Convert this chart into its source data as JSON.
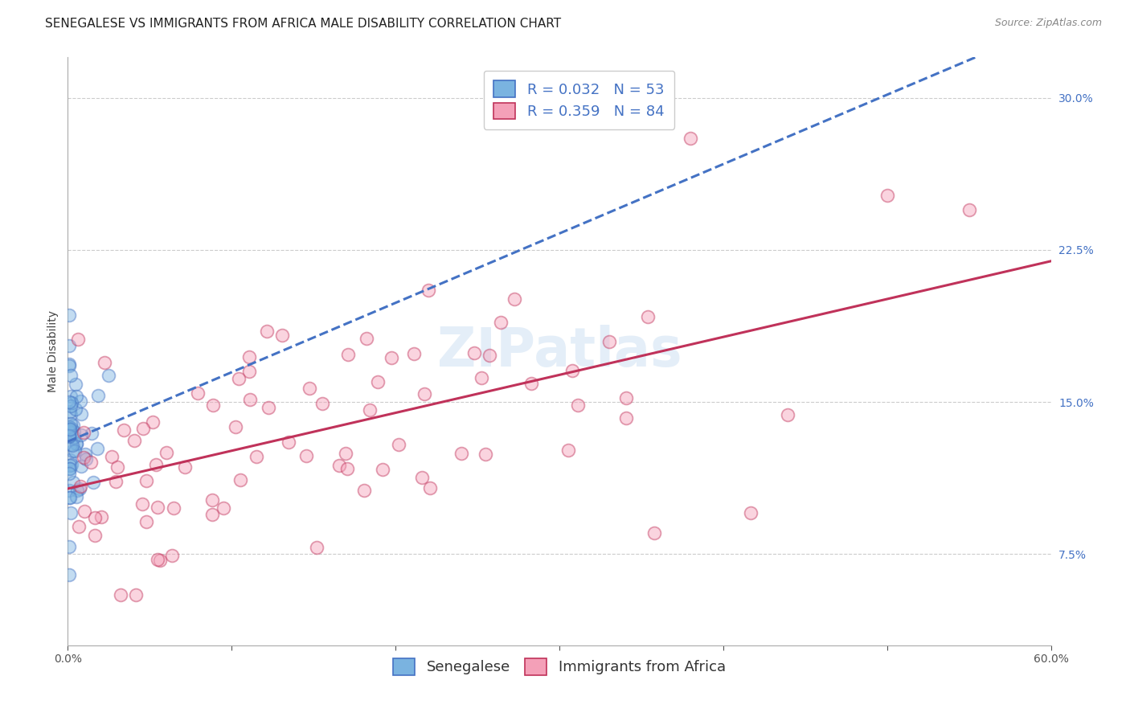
{
  "title": "SENEGALESE VS IMMIGRANTS FROM AFRICA MALE DISABILITY CORRELATION CHART",
  "source": "Source: ZipAtlas.com",
  "ylabel": "Male Disability",
  "watermark": "ZIPatlas",
  "senegalese": {
    "R": 0.032,
    "N": 53,
    "color_scatter": "#7ab3e0",
    "color_line": "#4472c4",
    "line_style": "--"
  },
  "immigrants": {
    "R": 0.359,
    "N": 84,
    "color_scatter": "#f4a0b8",
    "color_line": "#c0325a",
    "line_style": "-"
  },
  "xlim": [
    0.0,
    0.6
  ],
  "ylim": [
    0.03,
    0.32
  ],
  "xticks": [
    0.0,
    0.1,
    0.2,
    0.3,
    0.4,
    0.5,
    0.6
  ],
  "xtick_labels": [
    "0.0%",
    "",
    "",
    "",
    "",
    "",
    "60.0%"
  ],
  "yticks": [
    0.075,
    0.15,
    0.225,
    0.3
  ],
  "ytick_labels": [
    "7.5%",
    "15.0%",
    "22.5%",
    "30.0%"
  ],
  "legend_text_color": "#4472c4",
  "background_color": "#ffffff",
  "grid_color": "#cccccc",
  "title_fontsize": 11,
  "axis_label_fontsize": 10,
  "tick_fontsize": 10,
  "legend_fontsize": 13,
  "source_fontsize": 9,
  "watermark_fontsize": 48,
  "scatter_size": 130,
  "scatter_alpha": 0.45,
  "scatter_linewidth": 1.3
}
